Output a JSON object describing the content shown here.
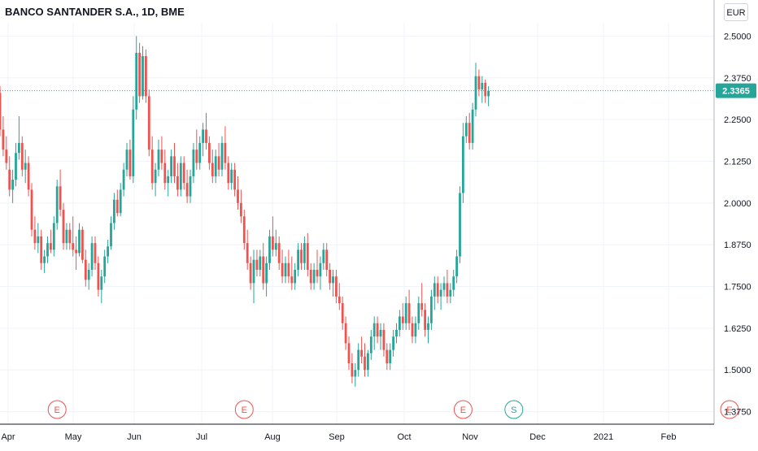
{
  "chart_title": "BANCO SANTANDER S.A., 1D, BME",
  "currency_button": "EUR",
  "last_price_label": "2.3365",
  "colors": {
    "up": "#26a69a",
    "down": "#ef5350",
    "grid": "#f0f3fa",
    "text": "#131722"
  },
  "chart_data": {
    "type": "candlestick",
    "title": "BANCO SANTANDER S.A., 1D, BME",
    "ylim": [
      1.3375,
      2.54
    ],
    "y_ticks": [
      "2.5000",
      "2.3750",
      "2.2500",
      "2.1250",
      "2.0000",
      "1.8750",
      "1.7500",
      "1.6250",
      "1.5000",
      "1.3750"
    ],
    "x_ticks": [
      "Apr",
      "May",
      "Jun",
      "Jul",
      "Aug",
      "Sep",
      "Oct",
      "Nov",
      "Dec",
      "2021",
      "Feb"
    ],
    "last_price": 2.3365,
    "events": [
      {
        "label": "E",
        "date_index": 18,
        "kind": "earnings"
      },
      {
        "label": "E",
        "date_index": 77,
        "kind": "earnings"
      },
      {
        "label": "E",
        "date_index": 146,
        "kind": "earnings"
      },
      {
        "label": "S",
        "date_index": 162,
        "kind": "split"
      },
      {
        "label": "E",
        "date_index": 230,
        "kind": "earnings"
      }
    ],
    "candles": [
      [
        2.33,
        2.35,
        2.2,
        2.22
      ],
      [
        2.22,
        2.26,
        2.14,
        2.16
      ],
      [
        2.16,
        2.2,
        2.1,
        2.12
      ],
      [
        2.1,
        2.14,
        2.02,
        2.04
      ],
      [
        2.04,
        2.1,
        2.0,
        2.07
      ],
      [
        2.07,
        2.18,
        2.05,
        2.15
      ],
      [
        2.15,
        2.26,
        2.13,
        2.18
      ],
      [
        2.18,
        2.2,
        2.08,
        2.1
      ],
      [
        2.1,
        2.16,
        2.06,
        2.12
      ],
      [
        2.12,
        2.14,
        2.02,
        2.04
      ],
      [
        2.04,
        2.06,
        1.9,
        1.92
      ],
      [
        1.92,
        1.96,
        1.86,
        1.88
      ],
      [
        1.88,
        1.94,
        1.85,
        1.9
      ],
      [
        1.9,
        1.92,
        1.8,
        1.82
      ],
      [
        1.82,
        1.86,
        1.79,
        1.84
      ],
      [
        1.84,
        1.9,
        1.82,
        1.88
      ],
      [
        1.88,
        1.92,
        1.85,
        1.86
      ],
      [
        1.86,
        1.96,
        1.84,
        1.94
      ],
      [
        1.94,
        2.07,
        1.92,
        2.05
      ],
      [
        2.05,
        2.1,
        1.96,
        1.98
      ],
      [
        1.98,
        2.0,
        1.86,
        1.88
      ],
      [
        1.88,
        1.94,
        1.86,
        1.92
      ],
      [
        1.92,
        1.94,
        1.86,
        1.88
      ],
      [
        1.88,
        1.96,
        1.84,
        1.86
      ],
      [
        1.86,
        1.9,
        1.8,
        1.85
      ],
      [
        1.85,
        1.94,
        1.84,
        1.92
      ],
      [
        1.92,
        1.93,
        1.82,
        1.83
      ],
      [
        1.83,
        1.86,
        1.75,
        1.77
      ],
      [
        1.77,
        1.82,
        1.74,
        1.8
      ],
      [
        1.8,
        1.9,
        1.78,
        1.88
      ],
      [
        1.88,
        1.9,
        1.8,
        1.82
      ],
      [
        1.82,
        1.84,
        1.72,
        1.74
      ],
      [
        1.74,
        1.8,
        1.7,
        1.78
      ],
      [
        1.78,
        1.86,
        1.76,
        1.84
      ],
      [
        1.84,
        1.89,
        1.82,
        1.87
      ],
      [
        1.87,
        1.96,
        1.86,
        1.94
      ],
      [
        1.94,
        2.03,
        1.92,
        2.01
      ],
      [
        2.01,
        2.04,
        1.96,
        1.97
      ],
      [
        1.97,
        2.06,
        1.96,
        2.04
      ],
      [
        2.04,
        2.12,
        2.02,
        2.1
      ],
      [
        2.1,
        2.18,
        2.08,
        2.16
      ],
      [
        2.16,
        2.19,
        2.07,
        2.08
      ],
      [
        2.08,
        2.32,
        2.06,
        2.28
      ],
      [
        2.28,
        2.5,
        2.25,
        2.45
      ],
      [
        2.45,
        2.48,
        2.3,
        2.32
      ],
      [
        2.32,
        2.47,
        2.31,
        2.44
      ],
      [
        2.44,
        2.46,
        2.3,
        2.32
      ],
      [
        2.32,
        2.34,
        2.14,
        2.16
      ],
      [
        2.16,
        2.2,
        2.04,
        2.06
      ],
      [
        2.06,
        2.12,
        2.02,
        2.1
      ],
      [
        2.1,
        2.19,
        2.08,
        2.16
      ],
      [
        2.16,
        2.2,
        2.1,
        2.12
      ],
      [
        2.12,
        2.16,
        2.04,
        2.06
      ],
      [
        2.06,
        2.1,
        2.02,
        2.08
      ],
      [
        2.08,
        2.16,
        2.06,
        2.14
      ],
      [
        2.14,
        2.18,
        2.06,
        2.08
      ],
      [
        2.08,
        2.12,
        2.02,
        2.04
      ],
      [
        2.04,
        2.14,
        2.02,
        2.12
      ],
      [
        2.12,
        2.14,
        2.04,
        2.06
      ],
      [
        2.06,
        2.1,
        2.0,
        2.02
      ],
      [
        2.02,
        2.1,
        2.0,
        2.08
      ],
      [
        2.08,
        2.18,
        2.06,
        2.16
      ],
      [
        2.16,
        2.22,
        2.1,
        2.12
      ],
      [
        2.12,
        2.2,
        2.1,
        2.18
      ],
      [
        2.18,
        2.24,
        2.14,
        2.22
      ],
      [
        2.22,
        2.27,
        2.16,
        2.18
      ],
      [
        2.18,
        2.2,
        2.1,
        2.12
      ],
      [
        2.12,
        2.16,
        2.06,
        2.08
      ],
      [
        2.08,
        2.16,
        2.06,
        2.14
      ],
      [
        2.14,
        2.18,
        2.08,
        2.1
      ],
      [
        2.1,
        2.2,
        2.08,
        2.18
      ],
      [
        2.18,
        2.23,
        2.1,
        2.12
      ],
      [
        2.12,
        2.14,
        2.04,
        2.06
      ],
      [
        2.06,
        2.12,
        2.04,
        2.1
      ],
      [
        2.1,
        2.12,
        2.02,
        2.04
      ],
      [
        2.04,
        2.08,
        1.98,
        2.0
      ],
      [
        2.0,
        2.04,
        1.94,
        1.96
      ],
      [
        1.96,
        1.98,
        1.86,
        1.88
      ],
      [
        1.88,
        1.92,
        1.8,
        1.82
      ],
      [
        1.82,
        1.84,
        1.74,
        1.76
      ],
      [
        1.76,
        1.86,
        1.7,
        1.83
      ],
      [
        1.83,
        1.86,
        1.78,
        1.8
      ],
      [
        1.8,
        1.86,
        1.78,
        1.84
      ],
      [
        1.84,
        1.88,
        1.74,
        1.76
      ],
      [
        1.76,
        1.84,
        1.72,
        1.82
      ],
      [
        1.82,
        1.92,
        1.8,
        1.9
      ],
      [
        1.9,
        1.96,
        1.84,
        1.86
      ],
      [
        1.86,
        1.92,
        1.84,
        1.88
      ],
      [
        1.88,
        1.9,
        1.8,
        1.82
      ],
      [
        1.82,
        1.86,
        1.76,
        1.78
      ],
      [
        1.78,
        1.84,
        1.76,
        1.82
      ],
      [
        1.82,
        1.86,
        1.76,
        1.78
      ],
      [
        1.78,
        1.84,
        1.74,
        1.76
      ],
      [
        1.76,
        1.82,
        1.74,
        1.8
      ],
      [
        1.8,
        1.88,
        1.78,
        1.86
      ],
      [
        1.86,
        1.88,
        1.8,
        1.82
      ],
      [
        1.82,
        1.9,
        1.8,
        1.88
      ],
      [
        1.88,
        1.91,
        1.78,
        1.8
      ],
      [
        1.8,
        1.82,
        1.74,
        1.76
      ],
      [
        1.76,
        1.82,
        1.74,
        1.8
      ],
      [
        1.8,
        1.86,
        1.76,
        1.78
      ],
      [
        1.78,
        1.84,
        1.74,
        1.82
      ],
      [
        1.82,
        1.88,
        1.8,
        1.86
      ],
      [
        1.86,
        1.88,
        1.78,
        1.8
      ],
      [
        1.8,
        1.82,
        1.74,
        1.76
      ],
      [
        1.76,
        1.8,
        1.72,
        1.78
      ],
      [
        1.78,
        1.8,
        1.7,
        1.72
      ],
      [
        1.72,
        1.76,
        1.68,
        1.7
      ],
      [
        1.7,
        1.72,
        1.62,
        1.64
      ],
      [
        1.64,
        1.66,
        1.56,
        1.58
      ],
      [
        1.58,
        1.6,
        1.5,
        1.52
      ],
      [
        1.52,
        1.55,
        1.46,
        1.48
      ],
      [
        1.48,
        1.52,
        1.45,
        1.5
      ],
      [
        1.5,
        1.58,
        1.48,
        1.56
      ],
      [
        1.56,
        1.6,
        1.52,
        1.54
      ],
      [
        1.54,
        1.58,
        1.48,
        1.5
      ],
      [
        1.5,
        1.56,
        1.48,
        1.55
      ],
      [
        1.55,
        1.62,
        1.53,
        1.6
      ],
      [
        1.6,
        1.66,
        1.56,
        1.64
      ],
      [
        1.64,
        1.66,
        1.58,
        1.6
      ],
      [
        1.6,
        1.64,
        1.56,
        1.62
      ],
      [
        1.62,
        1.64,
        1.54,
        1.56
      ],
      [
        1.56,
        1.58,
        1.5,
        1.52
      ],
      [
        1.52,
        1.58,
        1.5,
        1.56
      ],
      [
        1.56,
        1.62,
        1.54,
        1.6
      ],
      [
        1.6,
        1.64,
        1.58,
        1.62
      ],
      [
        1.62,
        1.68,
        1.6,
        1.66
      ],
      [
        1.66,
        1.7,
        1.62,
        1.64
      ],
      [
        1.64,
        1.72,
        1.62,
        1.7
      ],
      [
        1.7,
        1.74,
        1.62,
        1.64
      ],
      [
        1.64,
        1.66,
        1.58,
        1.6
      ],
      [
        1.6,
        1.66,
        1.58,
        1.64
      ],
      [
        1.64,
        1.72,
        1.62,
        1.7
      ],
      [
        1.7,
        1.76,
        1.66,
        1.68
      ],
      [
        1.68,
        1.7,
        1.6,
        1.62
      ],
      [
        1.62,
        1.66,
        1.58,
        1.64
      ],
      [
        1.64,
        1.74,
        1.62,
        1.72
      ],
      [
        1.72,
        1.78,
        1.68,
        1.76
      ],
      [
        1.76,
        1.78,
        1.7,
        1.72
      ],
      [
        1.72,
        1.76,
        1.68,
        1.74
      ],
      [
        1.74,
        1.78,
        1.72,
        1.76
      ],
      [
        1.76,
        1.8,
        1.7,
        1.72
      ],
      [
        1.72,
        1.76,
        1.7,
        1.74
      ],
      [
        1.74,
        1.8,
        1.72,
        1.78
      ],
      [
        1.78,
        1.86,
        1.76,
        1.84
      ],
      [
        1.84,
        2.05,
        1.82,
        2.03
      ],
      [
        2.03,
        2.24,
        2.0,
        2.2
      ],
      [
        2.2,
        2.26,
        2.18,
        2.24
      ],
      [
        2.24,
        2.27,
        2.16,
        2.18
      ],
      [
        2.18,
        2.3,
        2.16,
        2.28
      ],
      [
        2.28,
        2.42,
        2.26,
        2.38
      ],
      [
        2.38,
        2.4,
        2.32,
        2.34
      ],
      [
        2.34,
        2.38,
        2.3,
        2.36
      ],
      [
        2.36,
        2.37,
        2.3,
        2.32
      ],
      [
        2.32,
        2.35,
        2.29,
        2.3365
      ]
    ]
  }
}
